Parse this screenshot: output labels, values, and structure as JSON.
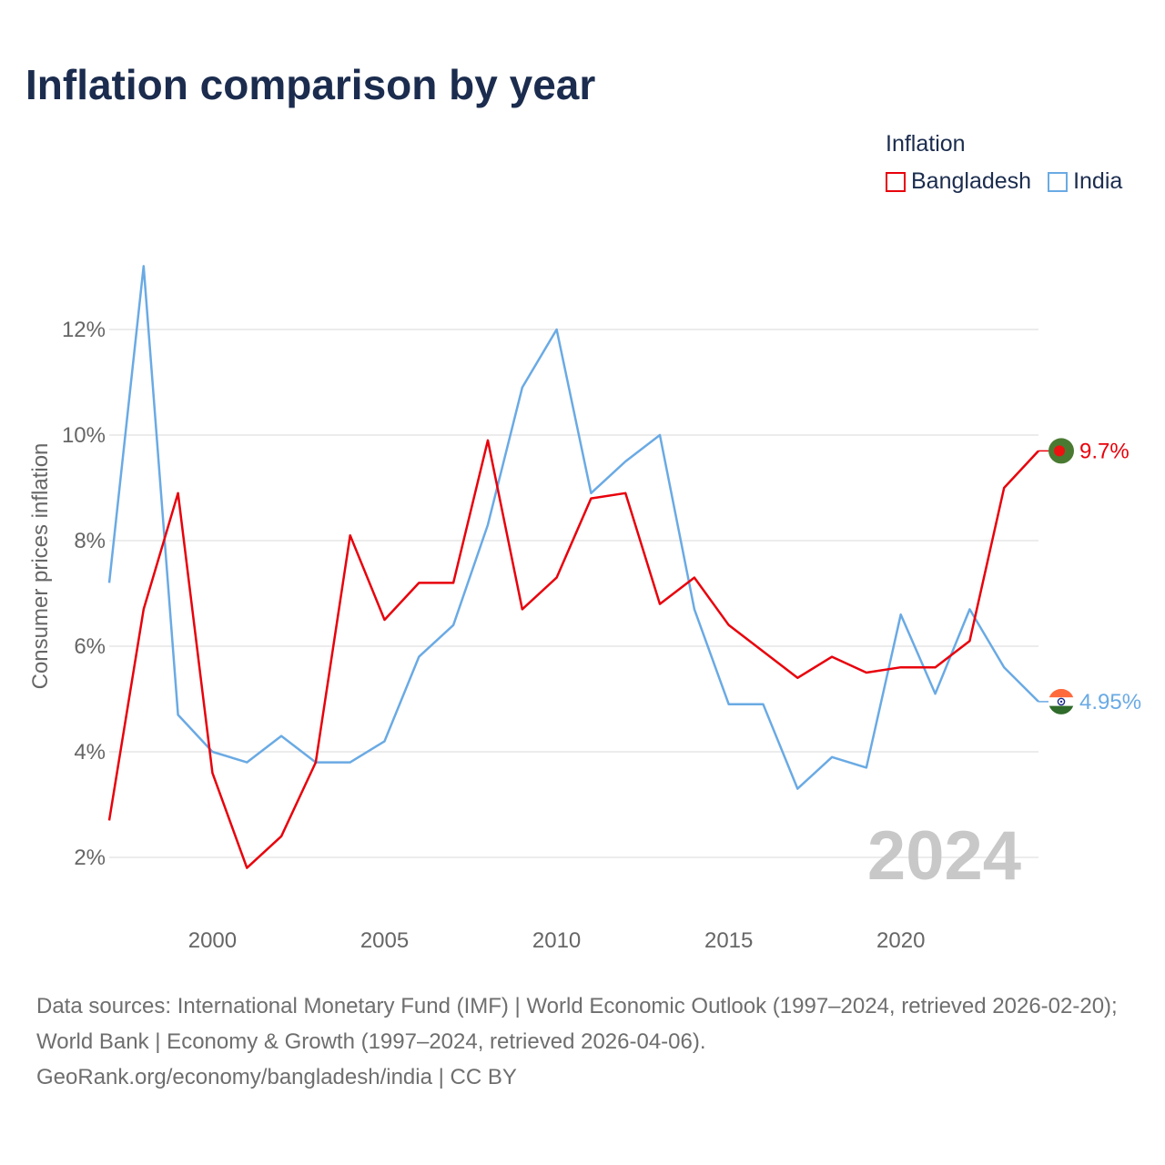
{
  "title": "Inflation comparison by year",
  "legend": {
    "title": "Inflation",
    "items": [
      {
        "name": "Bangladesh",
        "color": "#e8000b"
      },
      {
        "name": "India",
        "color": "#6aaae4"
      }
    ]
  },
  "chart_data": {
    "type": "line",
    "title": "Inflation comparison by year",
    "xlabel": "",
    "ylabel": "Consumer prices inflation",
    "x": [
      1997,
      1998,
      1999,
      2000,
      2001,
      2002,
      2003,
      2004,
      2005,
      2006,
      2007,
      2008,
      2009,
      2010,
      2011,
      2012,
      2013,
      2014,
      2015,
      2016,
      2017,
      2018,
      2019,
      2020,
      2021,
      2022,
      2023,
      2024
    ],
    "xlim": [
      1997,
      2024
    ],
    "ylim": [
      1,
      14
    ],
    "xticks": [
      2000,
      2005,
      2010,
      2015,
      2020
    ],
    "xtick_labels": [
      "2000",
      "2005",
      "2010",
      "2015",
      "2020"
    ],
    "yticks": [
      2,
      4,
      6,
      8,
      10,
      12
    ],
    "ytick_labels": [
      "2%",
      "4%",
      "6%",
      "8%",
      "10%",
      "12%"
    ],
    "grid": true,
    "series": [
      {
        "name": "Bangladesh",
        "color": "#e8000b",
        "values": [
          2.7,
          6.7,
          8.9,
          3.6,
          1.8,
          2.4,
          3.8,
          8.1,
          6.5,
          7.2,
          7.2,
          9.9,
          6.7,
          7.3,
          8.8,
          8.9,
          6.8,
          7.3,
          6.4,
          5.9,
          5.4,
          5.8,
          5.5,
          5.6,
          5.6,
          6.1,
          9.0,
          9.7
        ],
        "end_label": "9.7%"
      },
      {
        "name": "India",
        "color": "#6aaae4",
        "values": [
          7.2,
          13.2,
          4.7,
          4.0,
          3.8,
          4.3,
          3.8,
          3.8,
          4.2,
          5.8,
          6.4,
          8.3,
          10.9,
          12.0,
          8.9,
          9.5,
          10.0,
          6.7,
          4.9,
          4.9,
          3.3,
          3.9,
          3.7,
          6.6,
          5.1,
          6.7,
          5.6,
          4.95
        ],
        "end_label": "4.95%"
      }
    ],
    "annotation": "2024"
  },
  "footer": {
    "line1": "Data sources: International Monetary Fund (IMF) | World Economic Outlook (1997–2024, retrieved 2026-02-20); World Bank | Economy & Growth (1997–2024, retrieved 2026-04-06).",
    "line2": "GeoRank.org/economy/bangladesh/india | CC BY"
  }
}
